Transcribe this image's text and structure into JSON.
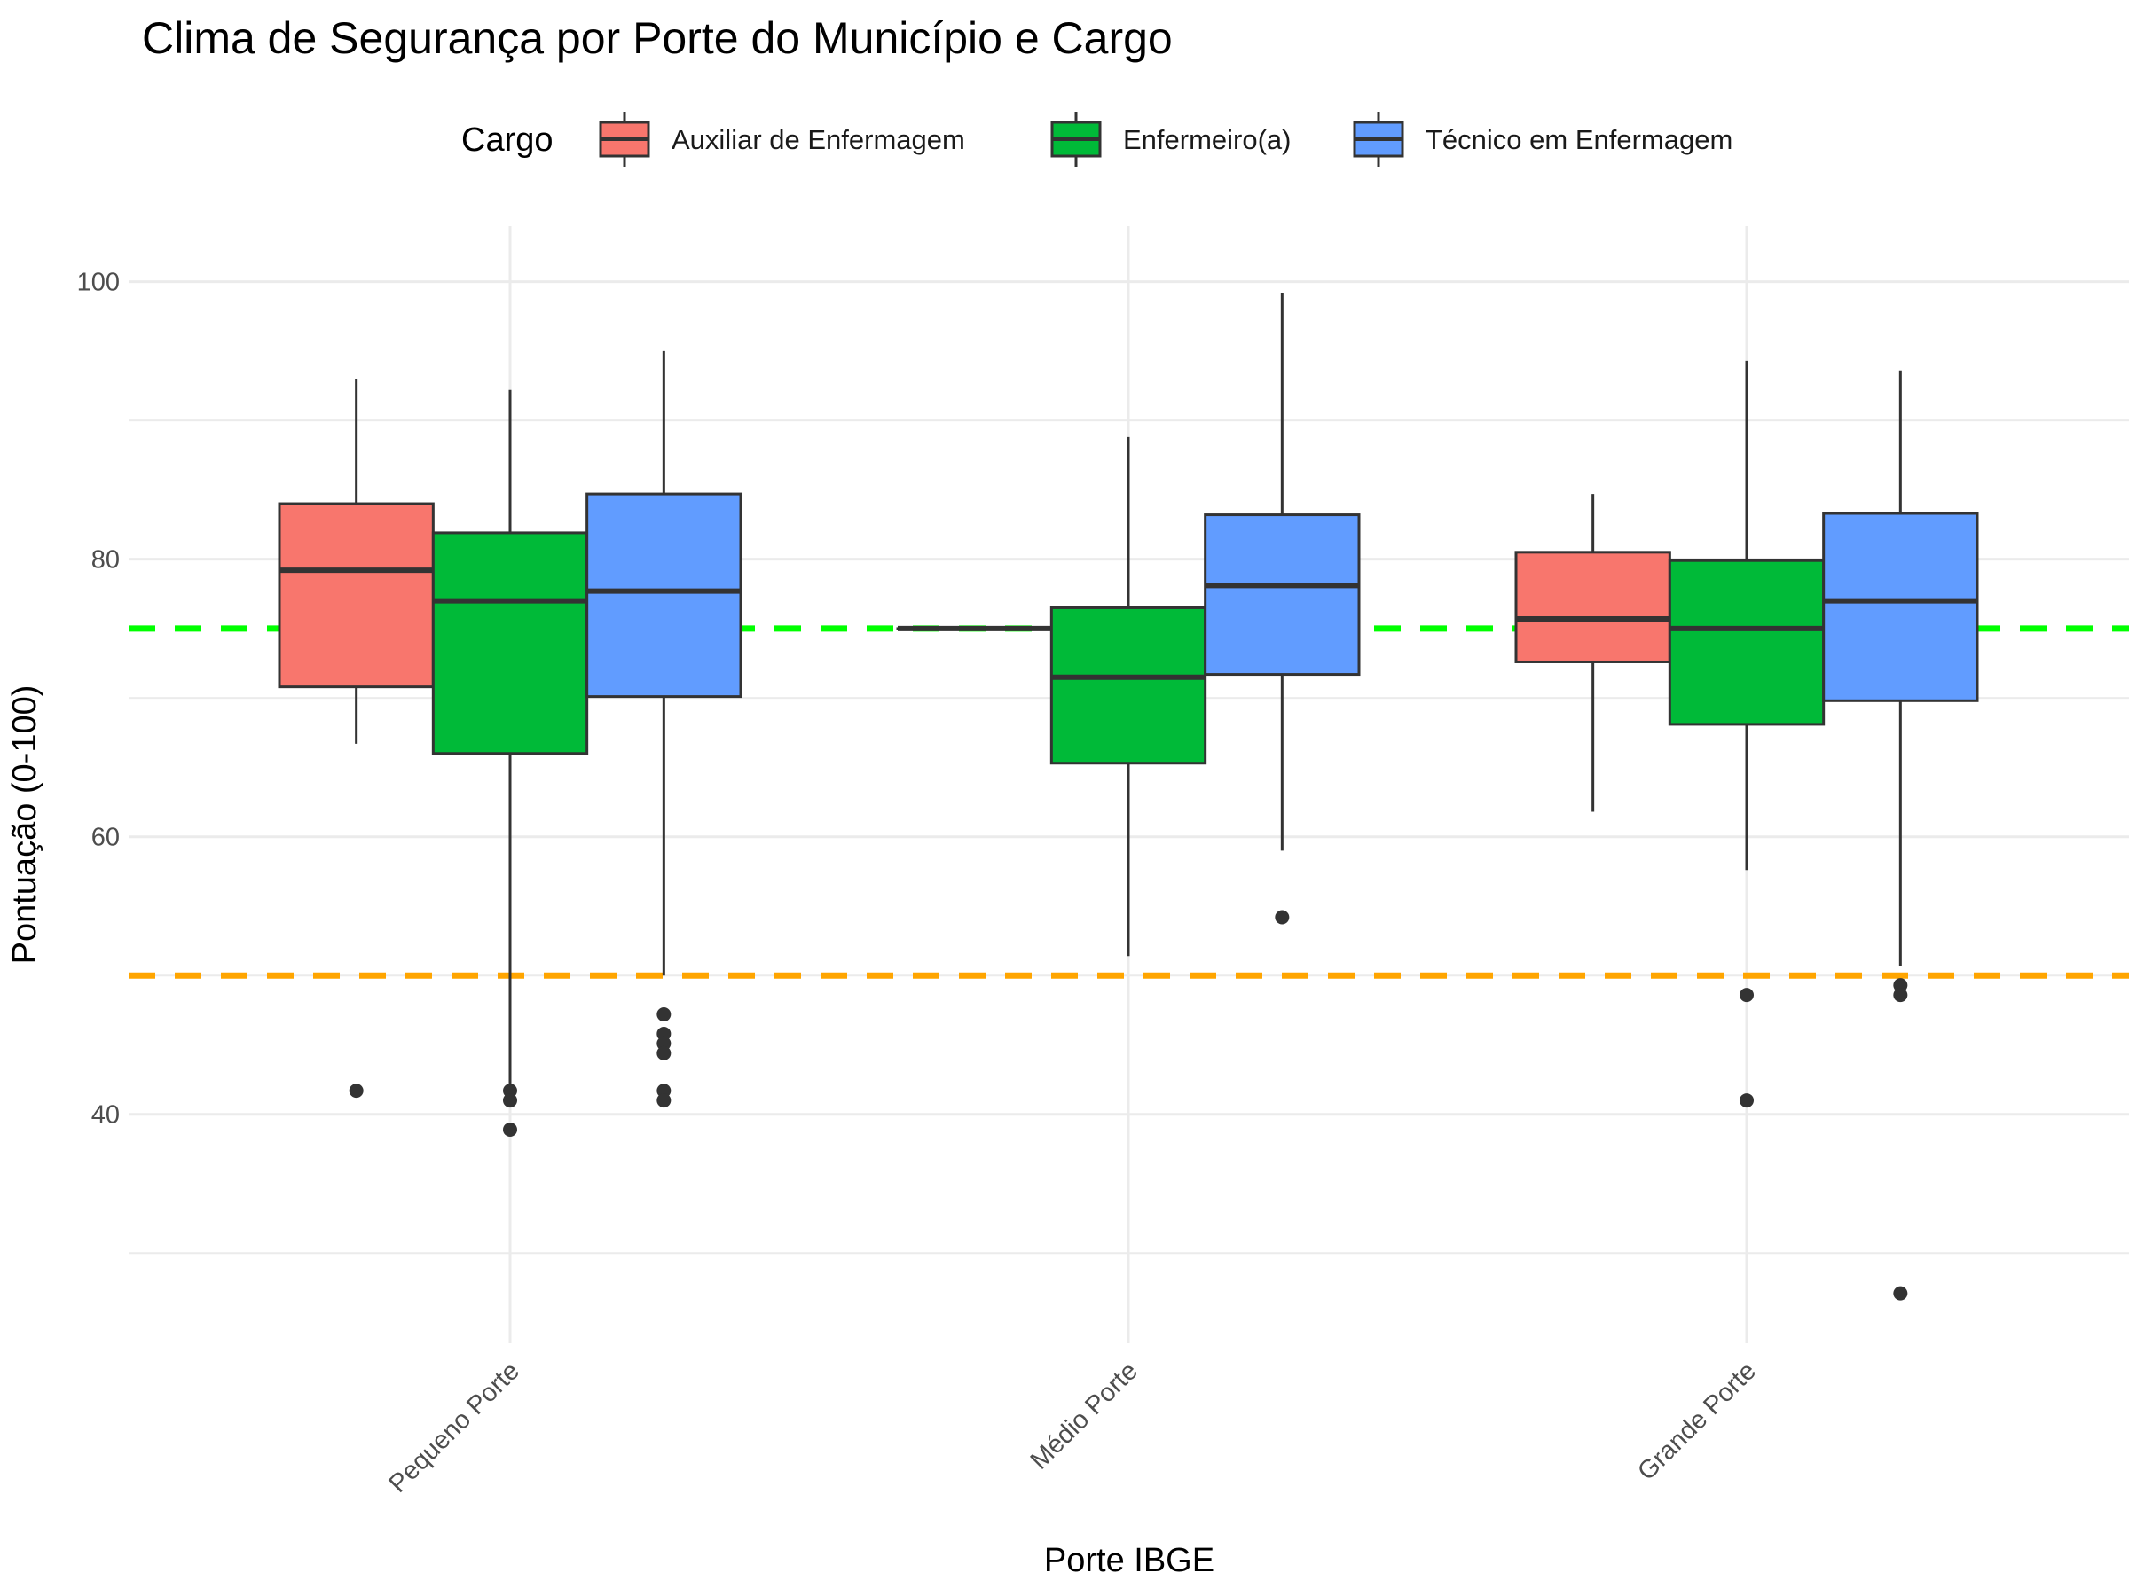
{
  "chart_data": {
    "type": "boxplot",
    "title": "Clima de Segurança por Porte do Município e Cargo",
    "xlabel": "Porte IBGE",
    "ylabel": "Pontuação (0-100)",
    "ylim": [
      23.5,
      104
    ],
    "y_ticks": [
      40,
      60,
      80,
      100
    ],
    "minor_y_ticks": [
      30,
      50,
      70,
      90
    ],
    "grid": true,
    "legend": {
      "title": "Cargo",
      "placement": "top",
      "entries": [
        "Auxiliar de Enfermagem",
        "Enfermeiro(a)",
        "Técnico em Enfermagem"
      ]
    },
    "categories": [
      "Pequeno Porte",
      "Médio Porte",
      "Grande Porte"
    ],
    "colors": {
      "Auxiliar de Enfermagem": "#F8766D",
      "Enfermeiro(a)": "#00BA38",
      "Técnico em Enfermagem": "#619CFF",
      "outline": "#333333"
    },
    "reference_lines": [
      {
        "y": 75,
        "color": "#00FF00",
        "style": "dashed"
      },
      {
        "y": 50,
        "color": "#FFA500",
        "style": "dashed"
      }
    ],
    "series": [
      {
        "name": "Auxiliar de Enfermagem",
        "boxes": [
          {
            "category": "Pequeno Porte",
            "whisker_low": 66.7,
            "q1": 70.8,
            "median": 79.2,
            "q3": 84.0,
            "whisker_high": 93.0,
            "outliers": [
              41.7
            ]
          },
          {
            "category": "Médio Porte",
            "whisker_low": 75.0,
            "q1": 75.0,
            "median": 75.0,
            "q3": 75.0,
            "whisker_high": 75.0,
            "outliers": []
          },
          {
            "category": "Grande Porte",
            "whisker_low": 61.8,
            "q1": 72.6,
            "median": 75.7,
            "q3": 80.5,
            "whisker_high": 84.7,
            "outliers": []
          }
        ]
      },
      {
        "name": "Enfermeiro(a)",
        "boxes": [
          {
            "category": "Pequeno Porte",
            "whisker_low": 41.7,
            "q1": 66.0,
            "median": 77.0,
            "q3": 81.9,
            "whisker_high": 92.2,
            "outliers": [
              41.7,
              41.0,
              38.9
            ]
          },
          {
            "category": "Médio Porte",
            "whisker_low": 51.4,
            "q1": 65.3,
            "median": 71.5,
            "q3": 76.5,
            "whisker_high": 88.8,
            "outliers": []
          },
          {
            "category": "Grande Porte",
            "whisker_low": 57.6,
            "q1": 68.1,
            "median": 75.0,
            "q3": 79.9,
            "whisker_high": 94.3,
            "outliers": [
              48.6,
              41.0
            ]
          }
        ]
      },
      {
        "name": "Técnico em Enfermagem",
        "boxes": [
          {
            "category": "Pequeno Porte",
            "whisker_low": 50.0,
            "q1": 70.1,
            "median": 77.7,
            "q3": 84.7,
            "whisker_high": 95.0,
            "outliers": [
              47.2,
              45.8,
              45.1,
              44.4,
              41.7,
              41.0
            ]
          },
          {
            "category": "Médio Porte",
            "whisker_low": 59.0,
            "q1": 71.7,
            "median": 78.1,
            "q3": 83.2,
            "whisker_high": 99.2,
            "outliers": [
              54.2
            ]
          },
          {
            "category": "Grande Porte",
            "whisker_low": 50.7,
            "q1": 69.8,
            "median": 77.0,
            "q3": 83.3,
            "whisker_high": 93.6,
            "outliers": [
              49.3,
              48.6,
              27.1
            ]
          }
        ]
      }
    ]
  }
}
